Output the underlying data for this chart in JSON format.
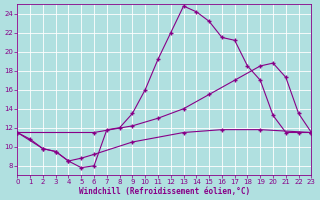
{
  "xlabel": "Windchill (Refroidissement éolien,°C)",
  "background_color": "#b0e0e0",
  "line_color": "#880088",
  "xlim": [
    0,
    23
  ],
  "ylim": [
    7,
    25
  ],
  "yticks": [
    8,
    10,
    12,
    14,
    16,
    18,
    20,
    22,
    24
  ],
  "xticks": [
    0,
    1,
    2,
    3,
    4,
    5,
    6,
    7,
    8,
    9,
    10,
    11,
    12,
    13,
    14,
    15,
    16,
    17,
    18,
    19,
    20,
    21,
    22,
    23
  ],
  "curve1_x": [
    0,
    1,
    2,
    3,
    4,
    5,
    6,
    7,
    8,
    9,
    10,
    11,
    12,
    13,
    14,
    15,
    16,
    17,
    18,
    19,
    20,
    21,
    22,
    23
  ],
  "curve1_y": [
    11.5,
    10.8,
    9.8,
    9.5,
    8.5,
    7.8,
    8.0,
    11.8,
    12.0,
    13.5,
    16.0,
    19.2,
    22.0,
    24.8,
    24.2,
    23.2,
    21.5,
    21.2,
    18.5,
    17.0,
    13.3,
    11.5,
    11.5,
    11.5
  ],
  "curve2_x": [
    0,
    6,
    9,
    11,
    13,
    15,
    17,
    19,
    20,
    21,
    22,
    23
  ],
  "curve2_y": [
    11.5,
    11.5,
    12.2,
    13.0,
    14.0,
    15.5,
    17.0,
    18.5,
    18.8,
    17.3,
    13.5,
    11.5
  ],
  "curve3_x": [
    0,
    2,
    3,
    4,
    5,
    6,
    9,
    13,
    16,
    19,
    23
  ],
  "curve3_y": [
    11.5,
    9.8,
    9.5,
    8.5,
    8.8,
    9.2,
    10.5,
    11.5,
    11.8,
    11.8,
    11.5
  ]
}
